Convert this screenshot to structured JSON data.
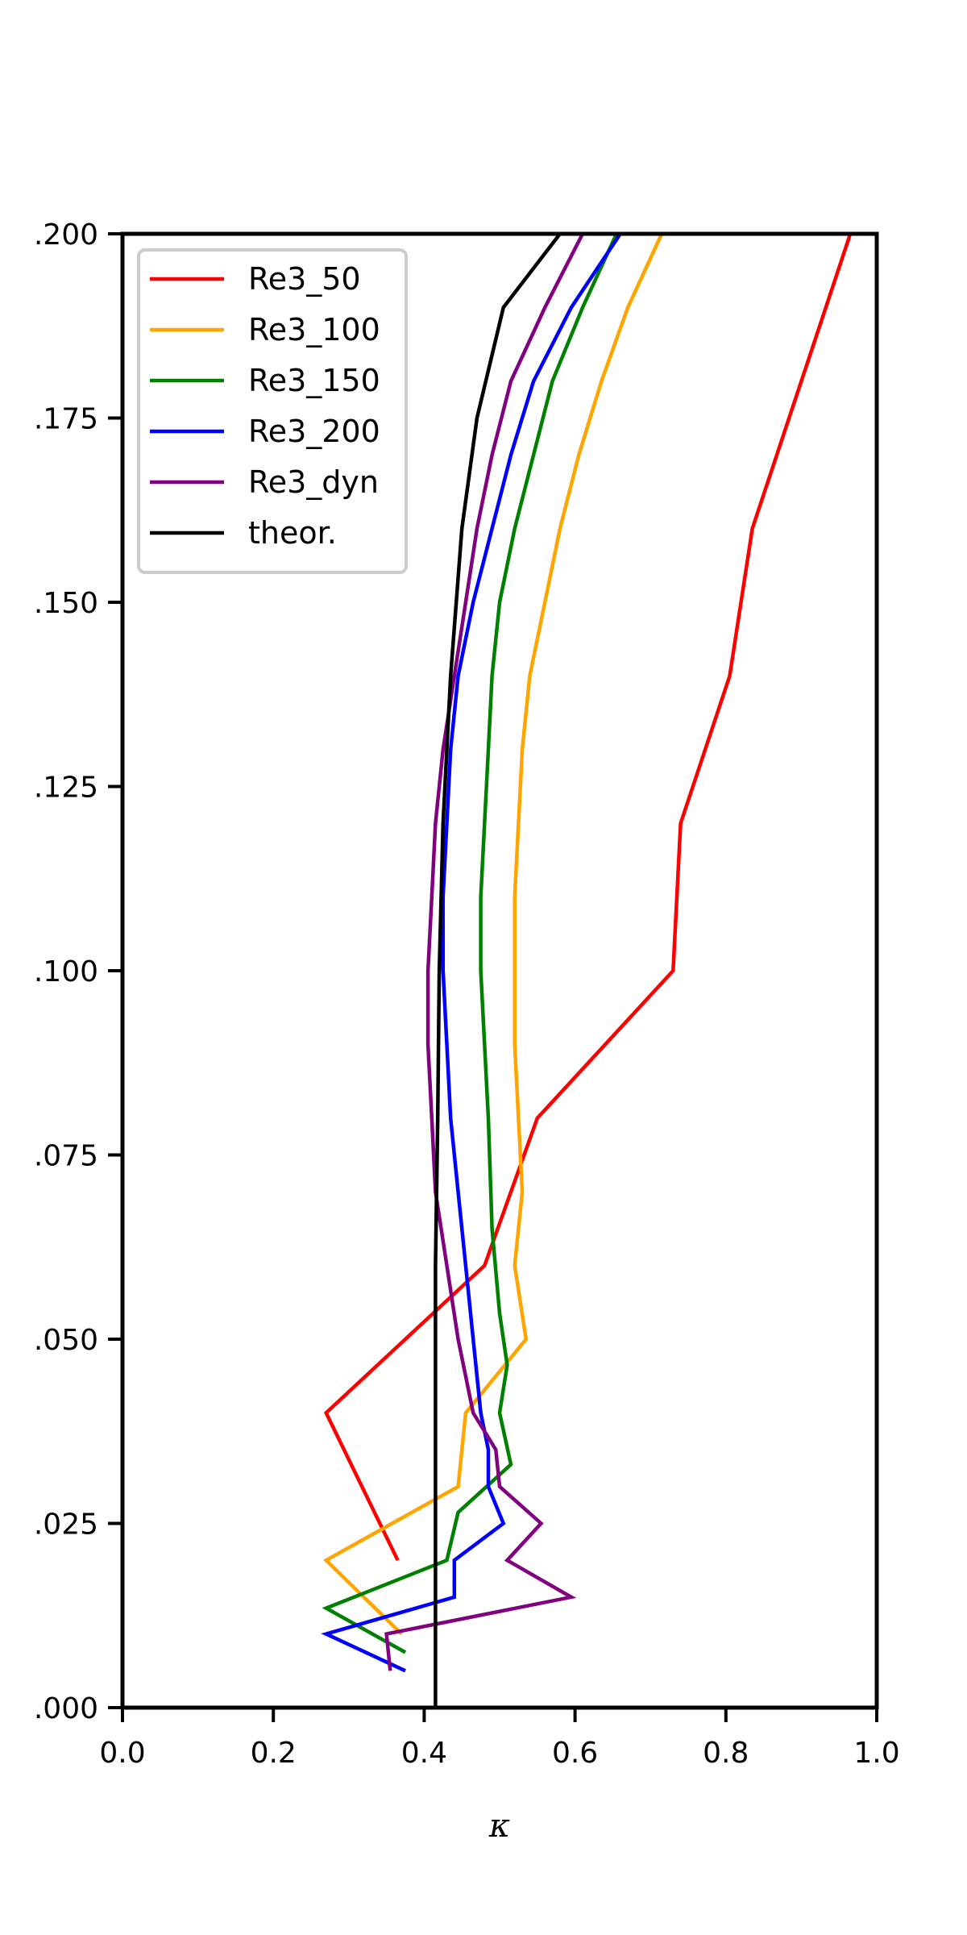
{
  "chart_data": {
    "type": "line",
    "xlabel": "κ",
    "ylabel": "",
    "xlim": [
      0.0,
      1.0
    ],
    "ylim": [
      0.0,
      0.2
    ],
    "x_ticks": [
      "0.0",
      "0.2",
      "0.4",
      "0.6",
      "0.8",
      "1.0"
    ],
    "y_ticks": [
      ".000",
      ".025",
      ".050",
      ".075",
      ".100",
      ".125",
      ".150",
      ".175",
      ".200"
    ],
    "grid": false,
    "legend_position": "top-left",
    "series": [
      {
        "name": "Re3_50",
        "color": "#ff0000",
        "points": [
          [
            0.365,
            0.02
          ],
          [
            0.27,
            0.04
          ],
          [
            0.48,
            0.06
          ],
          [
            0.55,
            0.08
          ],
          [
            0.73,
            0.1
          ],
          [
            0.74,
            0.12
          ],
          [
            0.805,
            0.14
          ],
          [
            0.835,
            0.16
          ],
          [
            0.9,
            0.18
          ],
          [
            0.965,
            0.2
          ]
        ]
      },
      {
        "name": "Re3_100",
        "color": "#ffa500",
        "points": [
          [
            0.37,
            0.01
          ],
          [
            0.27,
            0.02
          ],
          [
            0.445,
            0.03
          ],
          [
            0.455,
            0.04
          ],
          [
            0.535,
            0.05
          ],
          [
            0.52,
            0.06
          ],
          [
            0.53,
            0.07
          ],
          [
            0.525,
            0.08
          ],
          [
            0.52,
            0.09
          ],
          [
            0.52,
            0.1
          ],
          [
            0.52,
            0.11
          ],
          [
            0.525,
            0.12
          ],
          [
            0.53,
            0.13
          ],
          [
            0.54,
            0.14
          ],
          [
            0.56,
            0.15
          ],
          [
            0.58,
            0.16
          ],
          [
            0.605,
            0.17
          ],
          [
            0.635,
            0.18
          ],
          [
            0.67,
            0.19
          ],
          [
            0.715,
            0.2
          ]
        ]
      },
      {
        "name": "Re3_150",
        "color": "#008000",
        "points": [
          [
            0.375,
            0.0075
          ],
          [
            0.27,
            0.0135
          ],
          [
            0.43,
            0.02
          ],
          [
            0.445,
            0.0265
          ],
          [
            0.515,
            0.033
          ],
          [
            0.5,
            0.04
          ],
          [
            0.51,
            0.0465
          ],
          [
            0.5,
            0.0535
          ],
          [
            0.49,
            0.065
          ],
          [
            0.485,
            0.08
          ],
          [
            0.48,
            0.09
          ],
          [
            0.475,
            0.1
          ],
          [
            0.475,
            0.11
          ],
          [
            0.48,
            0.12
          ],
          [
            0.485,
            0.13
          ],
          [
            0.49,
            0.14
          ],
          [
            0.5,
            0.15
          ],
          [
            0.52,
            0.16
          ],
          [
            0.545,
            0.17
          ],
          [
            0.57,
            0.18
          ],
          [
            0.61,
            0.19
          ],
          [
            0.655,
            0.2
          ]
        ]
      },
      {
        "name": "Re3_200",
        "color": "#0000ff",
        "points": [
          [
            0.375,
            0.005
          ],
          [
            0.27,
            0.01
          ],
          [
            0.44,
            0.015
          ],
          [
            0.44,
            0.02
          ],
          [
            0.505,
            0.025
          ],
          [
            0.485,
            0.03
          ],
          [
            0.485,
            0.035
          ],
          [
            0.475,
            0.04
          ],
          [
            0.465,
            0.05
          ],
          [
            0.455,
            0.06
          ],
          [
            0.445,
            0.07
          ],
          [
            0.435,
            0.08
          ],
          [
            0.43,
            0.09
          ],
          [
            0.425,
            0.1
          ],
          [
            0.425,
            0.11
          ],
          [
            0.43,
            0.12
          ],
          [
            0.435,
            0.13
          ],
          [
            0.445,
            0.14
          ],
          [
            0.465,
            0.15
          ],
          [
            0.49,
            0.16
          ],
          [
            0.515,
            0.17
          ],
          [
            0.545,
            0.18
          ],
          [
            0.595,
            0.19
          ],
          [
            0.66,
            0.2
          ]
        ]
      },
      {
        "name": "Re3_dyn",
        "color": "#800080",
        "points": [
          [
            0.355,
            0.005
          ],
          [
            0.35,
            0.01
          ],
          [
            0.595,
            0.015
          ],
          [
            0.51,
            0.02
          ],
          [
            0.555,
            0.025
          ],
          [
            0.5,
            0.03
          ],
          [
            0.495,
            0.035
          ],
          [
            0.465,
            0.04
          ],
          [
            0.445,
            0.05
          ],
          [
            0.43,
            0.06
          ],
          [
            0.415,
            0.07
          ],
          [
            0.41,
            0.08
          ],
          [
            0.405,
            0.09
          ],
          [
            0.405,
            0.1
          ],
          [
            0.41,
            0.11
          ],
          [
            0.415,
            0.12
          ],
          [
            0.425,
            0.13
          ],
          [
            0.44,
            0.14
          ],
          [
            0.455,
            0.15
          ],
          [
            0.47,
            0.16
          ],
          [
            0.49,
            0.17
          ],
          [
            0.515,
            0.18
          ],
          [
            0.56,
            0.19
          ],
          [
            0.61,
            0.2
          ]
        ]
      },
      {
        "name": "theor.",
        "color": "#000000",
        "points": [
          [
            0.415,
            0.0
          ],
          [
            0.415,
            0.06
          ],
          [
            0.418,
            0.08
          ],
          [
            0.42,
            0.1
          ],
          [
            0.425,
            0.12
          ],
          [
            0.435,
            0.14
          ],
          [
            0.45,
            0.16
          ],
          [
            0.47,
            0.175
          ],
          [
            0.505,
            0.19
          ],
          [
            0.58,
            0.2
          ]
        ]
      }
    ]
  }
}
